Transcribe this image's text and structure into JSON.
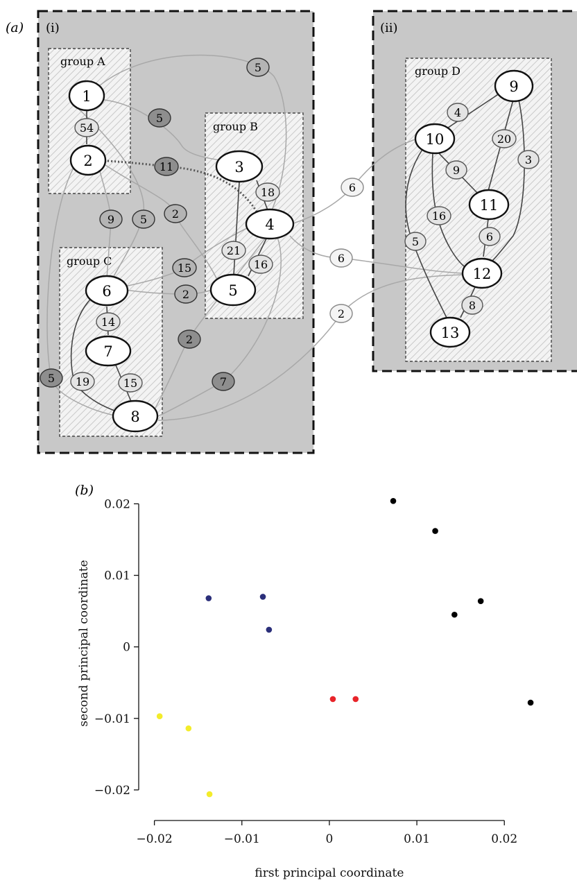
{
  "panel_a": {
    "label": "(a)",
    "box_i_label": "(i)",
    "box_ii_label": "(ii)",
    "groups": [
      "group A",
      "group B",
      "group C",
      "group D"
    ],
    "nodes": [
      "1",
      "2",
      "3",
      "4",
      "5",
      "6",
      "7",
      "8",
      "9",
      "10",
      "11",
      "12",
      "13"
    ],
    "edges": [
      {
        "from": "1",
        "to": "2",
        "label": "54",
        "kind": "within"
      },
      {
        "from": "3",
        "to": "4",
        "label": "18",
        "kind": "within"
      },
      {
        "from": "3",
        "to": "5",
        "label": "21",
        "kind": "within"
      },
      {
        "from": "4",
        "to": "5",
        "label": "16",
        "kind": "within"
      },
      {
        "from": "6",
        "to": "7",
        "label": "14",
        "kind": "within"
      },
      {
        "from": "7",
        "to": "8",
        "label": "15",
        "kind": "within"
      },
      {
        "from": "6",
        "to": "8",
        "label": "19",
        "kind": "within"
      },
      {
        "from": "9",
        "to": "10",
        "label": "4",
        "kind": "within"
      },
      {
        "from": "9",
        "to": "11",
        "label": "20",
        "kind": "within"
      },
      {
        "from": "9",
        "to": "12",
        "label": "3",
        "kind": "within"
      },
      {
        "from": "10",
        "to": "11",
        "label": "9",
        "kind": "within"
      },
      {
        "from": "10",
        "to": "12",
        "label": "16",
        "kind": "within"
      },
      {
        "from": "11",
        "to": "12",
        "label": "6",
        "kind": "within"
      },
      {
        "from": "10",
        "to": "13",
        "label": "5",
        "kind": "within"
      },
      {
        "from": "12",
        "to": "13",
        "label": "8",
        "kind": "within"
      },
      {
        "from": "2",
        "to": "4",
        "label": "11",
        "kind": "highlight"
      },
      {
        "from": "1",
        "to": "4",
        "label": "5",
        "kind": "between"
      },
      {
        "from": "1",
        "to": "3",
        "label": "5",
        "kind": "between"
      },
      {
        "from": "2",
        "to": "6",
        "label": "9",
        "kind": "between"
      },
      {
        "from": "1",
        "to": "6",
        "label": "5",
        "kind": "between"
      },
      {
        "from": "2",
        "to": "5",
        "label": "2",
        "kind": "between"
      },
      {
        "from": "6",
        "to": "4",
        "label": "15",
        "kind": "between"
      },
      {
        "from": "6",
        "to": "5",
        "label": "2",
        "kind": "between"
      },
      {
        "from": "8",
        "to": "4",
        "label": "2",
        "kind": "between"
      },
      {
        "from": "8",
        "to": "2",
        "label": "5",
        "kind": "between"
      },
      {
        "from": "8",
        "to": "4",
        "label": "7",
        "kind": "between"
      },
      {
        "from": "4",
        "to": "10",
        "label": "6",
        "kind": "cross"
      },
      {
        "from": "4",
        "to": "12",
        "label": "6",
        "kind": "cross"
      },
      {
        "from": "8",
        "to": "12",
        "label": "2",
        "kind": "cross"
      }
    ]
  },
  "panel_b": {
    "label": "(b)"
  },
  "chart_data": {
    "type": "scatter",
    "xlabel": "first principal coordinate",
    "ylabel": "second principal coordinate",
    "xlim": [
      -0.021,
      0.0245
    ],
    "ylim": [
      -0.0235,
      0.0245
    ],
    "xticks": [
      -0.02,
      -0.01,
      0,
      0.01,
      0.02
    ],
    "xtick_labels": [
      "−0.02",
      "−0.01",
      "0",
      "0.01",
      "0.02"
    ],
    "yticks": [
      -0.02,
      -0.01,
      0,
      0.01,
      0.02
    ],
    "ytick_labels": [
      "−0.02",
      "−0.01",
      "0",
      "0.01",
      "0.02"
    ],
    "grid": false,
    "series": [
      {
        "color": "#000000",
        "x": [
          0.0073,
          0.0121,
          0.0143,
          0.0173,
          0.023
        ],
        "y": [
          0.0204,
          0.0162,
          0.0045,
          0.0064,
          -0.0078
        ]
      },
      {
        "color": "#2b2f7a",
        "x": [
          -0.0138,
          -0.0076,
          -0.0069
        ],
        "y": [
          0.0068,
          0.007,
          0.0024
        ]
      },
      {
        "color": "#e8242a",
        "x": [
          0.0004,
          0.003
        ],
        "y": [
          -0.0073,
          -0.0073
        ]
      },
      {
        "color": "#f3ec2a",
        "x": [
          -0.0194,
          -0.0161,
          -0.0137
        ],
        "y": [
          -0.0097,
          -0.0114,
          -0.0206
        ]
      }
    ]
  }
}
